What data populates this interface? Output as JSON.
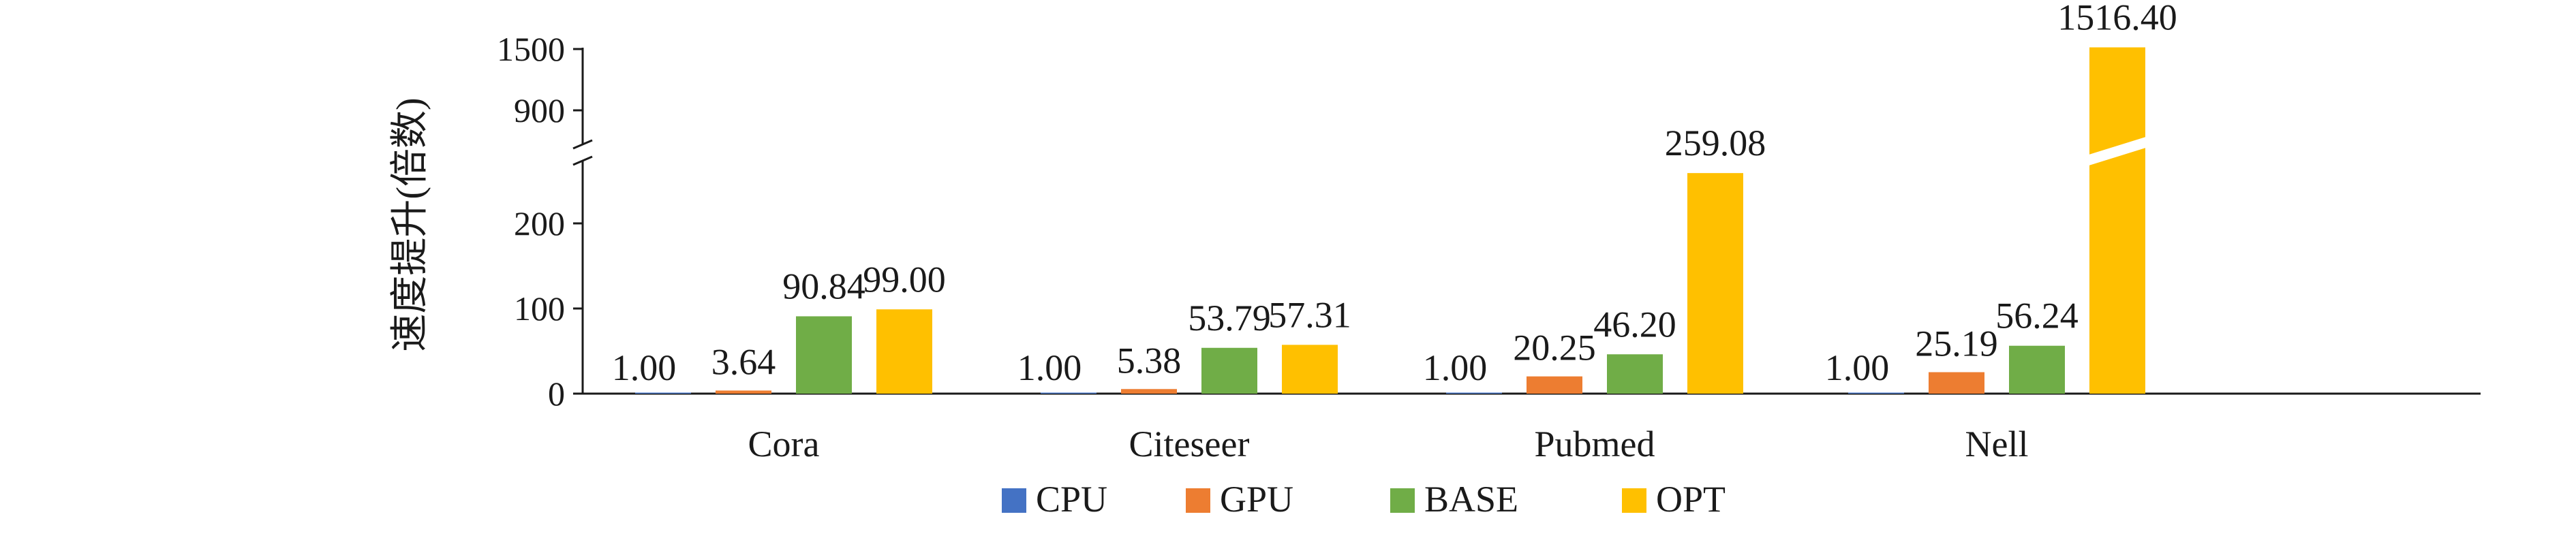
{
  "chart_data": {
    "type": "bar",
    "title": "",
    "xlabel": "",
    "ylabel": "速度提升(倍数)",
    "categories": [
      "Cora",
      "Citeseer",
      "Pubmed",
      "Nell"
    ],
    "series": [
      {
        "name": "CPU",
        "color": "#4472C4",
        "values": [
          1.0,
          1.0,
          1.0,
          1.0
        ],
        "labels": [
          "1.00",
          "1.00",
          "1.00",
          "1.00"
        ]
      },
      {
        "name": "GPU",
        "color": "#ED7D31",
        "values": [
          3.64,
          5.38,
          20.25,
          25.19
        ],
        "labels": [
          "3.64",
          "5.38",
          "20.25",
          "25.19"
        ]
      },
      {
        "name": "BASE",
        "color": "#70AD47",
        "values": [
          90.84,
          53.79,
          46.2,
          56.24
        ],
        "labels": [
          "90.84",
          "53.79",
          "46.20",
          "56.24"
        ]
      },
      {
        "name": "OPT",
        "color": "#FFC000",
        "values": [
          99.0,
          57.31,
          259.08,
          1516.4
        ],
        "labels": [
          "99.00",
          "57.31",
          "259.08",
          "1516.40"
        ]
      }
    ],
    "y_axis": {
      "broken": true,
      "lower_ticks": [
        "0",
        "100",
        "200"
      ],
      "lower_tick_values": [
        0,
        100,
        200
      ],
      "upper_ticks": [
        "900",
        "1500"
      ],
      "upper_tick_values": [
        900,
        1500
      ]
    },
    "legend": {
      "position": "bottom",
      "items": [
        "CPU",
        "GPU",
        "BASE",
        "OPT"
      ]
    },
    "grid": false
  }
}
